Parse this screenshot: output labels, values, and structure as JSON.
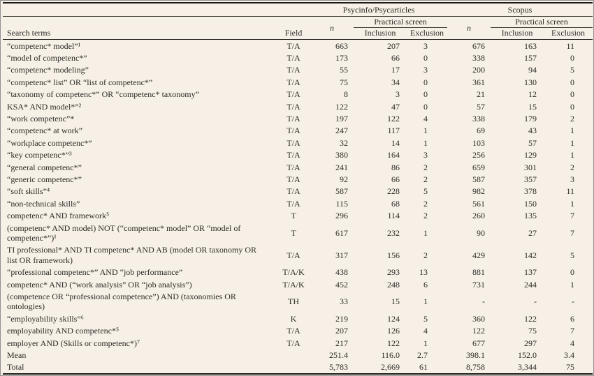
{
  "colors": {
    "background": "#f6f0e6",
    "text": "#2d2c29",
    "rule_thick": "#1b1a17",
    "rule_thin": "#403e39",
    "frame": "#8f8f8f"
  },
  "table": {
    "header": {
      "search_terms": "Search terms",
      "field": "Field",
      "n": "n",
      "group1": "Psycinfo/Psycarticles",
      "group2": "Scopus",
      "practical_screen": "Practical screen",
      "inclusion": "Inclusion",
      "exclusion": "Exclusion"
    },
    "rows": [
      {
        "term": "“competenc* model”¹",
        "field": "T/A",
        "n1": "663",
        "inc1": "207",
        "exc1": "3",
        "n2": "676",
        "inc2": "163",
        "exc2": "11"
      },
      {
        "term": "“model of competenc*”",
        "field": "T/A",
        "n1": "173",
        "inc1": "66",
        "exc1": "0",
        "n2": "338",
        "inc2": "157",
        "exc2": "0"
      },
      {
        "term": "“competenc* modeling”",
        "field": "T/A",
        "n1": "55",
        "inc1": "17",
        "exc1": "3",
        "n2": "200",
        "inc2": "94",
        "exc2": "5"
      },
      {
        "term": "“competenc* list” OR “list of competenc*”",
        "field": "T/A",
        "n1": "75",
        "inc1": "34",
        "exc1": "0",
        "n2": "361",
        "inc2": "130",
        "exc2": "0"
      },
      {
        "term": "“taxonomy of competenc*” OR “competenc* taxonomy”",
        "field": "T/A",
        "n1": "8",
        "inc1": "3",
        "exc1": "0",
        "n2": "21",
        "inc2": "12",
        "exc2": "0"
      },
      {
        "term": "KSA* AND model*”²",
        "field": "T/A",
        "n1": "122",
        "inc1": "47",
        "exc1": "0",
        "n2": "57",
        "inc2": "15",
        "exc2": "0"
      },
      {
        "term": "“work competenc”*",
        "field": "T/A",
        "n1": "197",
        "inc1": "122",
        "exc1": "4",
        "n2": "338",
        "inc2": "179",
        "exc2": "2"
      },
      {
        "term": "“competenc* at work”",
        "field": "T/A",
        "n1": "247",
        "inc1": "117",
        "exc1": "1",
        "n2": "69",
        "inc2": "43",
        "exc2": "1"
      },
      {
        "term": "“workplace competenc*”",
        "field": "T/A",
        "n1": "32",
        "inc1": "14",
        "exc1": "1",
        "n2": "103",
        "inc2": "57",
        "exc2": "1"
      },
      {
        "term": "“key competenc*”³",
        "field": "T/A",
        "n1": "380",
        "inc1": "164",
        "exc1": "3",
        "n2": "256",
        "inc2": "129",
        "exc2": "1"
      },
      {
        "term": "“general competenc*”",
        "field": "T/A",
        "n1": "241",
        "inc1": "86",
        "exc1": "2",
        "n2": "659",
        "inc2": "301",
        "exc2": "2"
      },
      {
        "term": "“generic competenc*”",
        "field": "T/A",
        "n1": "92",
        "inc1": "66",
        "exc1": "2",
        "n2": "587",
        "inc2": "357",
        "exc2": "3"
      },
      {
        "term": "“soft skills”⁴",
        "field": "T/A",
        "n1": "587",
        "inc1": "228",
        "exc1": "5",
        "n2": "982",
        "inc2": "378",
        "exc2": "11"
      },
      {
        "term": "“non-technical skills”",
        "field": "T/A",
        "n1": "115",
        "inc1": "68",
        "exc1": "2",
        "n2": "561",
        "inc2": "150",
        "exc2": "1"
      },
      {
        "term": "competenc* AND framework⁵",
        "field": "T",
        "n1": "296",
        "inc1": "114",
        "exc1": "2",
        "n2": "260",
        "inc2": "135",
        "exc2": "7"
      },
      {
        "term": "(competenc* AND model) NOT (“competenc* model” OR “model of competenc*”)¹",
        "field": "T",
        "n1": "617",
        "inc1": "232",
        "exc1": "1",
        "n2": "90",
        "inc2": "27",
        "exc2": "7"
      },
      {
        "term": "TI professional* AND TI competenc* AND AB (model OR taxonomy OR list OR framework)",
        "field": "T/A",
        "n1": "317",
        "inc1": "156",
        "exc1": "2",
        "n2": "429",
        "inc2": "142",
        "exc2": "5"
      },
      {
        "term": "“professional competenc*” AND “job performance”",
        "field": "T/A/K",
        "n1": "438",
        "inc1": "293",
        "exc1": "13",
        "n2": "881",
        "inc2": "137",
        "exc2": "0"
      },
      {
        "term": "competenc* AND (“work analysis” OR “job analysis”)",
        "field": "T/A/K",
        "n1": "452",
        "inc1": "248",
        "exc1": "6",
        "n2": "731",
        "inc2": "244",
        "exc2": "1"
      },
      {
        "term": "(competence OR “professional competence”) AND (taxonomies OR ontologies)",
        "field": "TH",
        "n1": "33",
        "inc1": "15",
        "exc1": "1",
        "n2": "-",
        "inc2": "-",
        "exc2": "-"
      },
      {
        "term": "“employability skills”⁶",
        "field": "K",
        "n1": "219",
        "inc1": "124",
        "exc1": "5",
        "n2": "360",
        "inc2": "122",
        "exc2": "6"
      },
      {
        "term": "employability AND competenc*⁵",
        "field": "T/A",
        "n1": "207",
        "inc1": "126",
        "exc1": "4",
        "n2": "122",
        "inc2": "75",
        "exc2": "7"
      },
      {
        "term": "employer AND (Skills or competenc*)⁷",
        "field": "T/A",
        "n1": "217",
        "inc1": "122",
        "exc1": "1",
        "n2": "677",
        "inc2": "297",
        "exc2": "4"
      },
      {
        "term": "Mean",
        "field": "",
        "n1": "251.4",
        "inc1": "116.0",
        "exc1": "2.7",
        "n2": "398.1",
        "inc2": "152.0",
        "exc2": "3.4"
      },
      {
        "term": "Total",
        "field": "",
        "n1": "5,783",
        "inc1": "2,669",
        "exc1": "61",
        "n2": "8,758",
        "inc2": "3,344",
        "exc2": "75"
      }
    ]
  }
}
